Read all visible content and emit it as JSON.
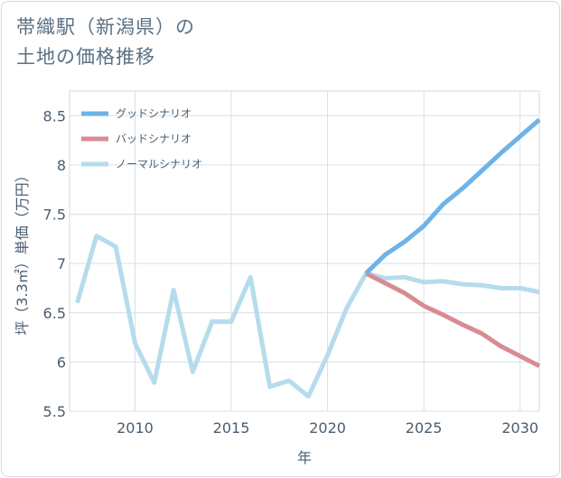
{
  "title_line1": "帯織駅（新潟県）の",
  "title_line2": "土地の価格推移",
  "chart_data": {
    "type": "line",
    "xlabel": "年",
    "ylabel": "坪（3.3㎡）単価（万円）",
    "xlim": [
      2006.6,
      2031
    ],
    "ylim": [
      5.5,
      8.75
    ],
    "xticks": [
      2010,
      2015,
      2020,
      2025,
      2030
    ],
    "xtick_labels": [
      "2010",
      "2015",
      "2020",
      "2025",
      "2030"
    ],
    "yticks": [
      5.5,
      6,
      6.5,
      7,
      7.5,
      8,
      8.5
    ],
    "ytick_labels": [
      "5.5",
      "6",
      "6.5",
      "7",
      "7.5",
      "8",
      "8.5"
    ],
    "grid": true,
    "legend_position": "top-left",
    "series": [
      {
        "name": "グッドシナリオ",
        "color": "#6db3e8",
        "x": [
          2022,
          2023,
          2024,
          2025,
          2026,
          2027,
          2028,
          2029,
          2030,
          2031
        ],
        "values": [
          6.9,
          7.09,
          7.22,
          7.38,
          7.6,
          7.76,
          7.94,
          8.12,
          8.29,
          8.46
        ]
      },
      {
        "name": "バッドシナリオ",
        "color": "#d98a92",
        "x": [
          2022,
          2023,
          2024,
          2025,
          2026,
          2027,
          2028,
          2029,
          2030,
          2031
        ],
        "values": [
          6.9,
          6.8,
          6.7,
          6.57,
          6.48,
          6.38,
          6.29,
          6.16,
          6.06,
          5.96
        ]
      },
      {
        "name": "ノーマルシナリオ",
        "color": "#b5dcec",
        "x": [
          2007,
          2008,
          2009,
          2010,
          2011,
          2012,
          2013,
          2014,
          2015,
          2016,
          2017,
          2018,
          2019,
          2020,
          2021,
          2022,
          2023,
          2024,
          2025,
          2026,
          2027,
          2028,
          2029,
          2030,
          2031
        ],
        "values": [
          6.6,
          7.28,
          7.17,
          6.19,
          5.79,
          6.73,
          5.9,
          6.41,
          6.41,
          6.86,
          5.75,
          5.81,
          5.65,
          6.07,
          6.55,
          6.9,
          6.85,
          6.86,
          6.81,
          6.82,
          6.79,
          6.78,
          6.75,
          6.75,
          6.71
        ]
      }
    ]
  }
}
